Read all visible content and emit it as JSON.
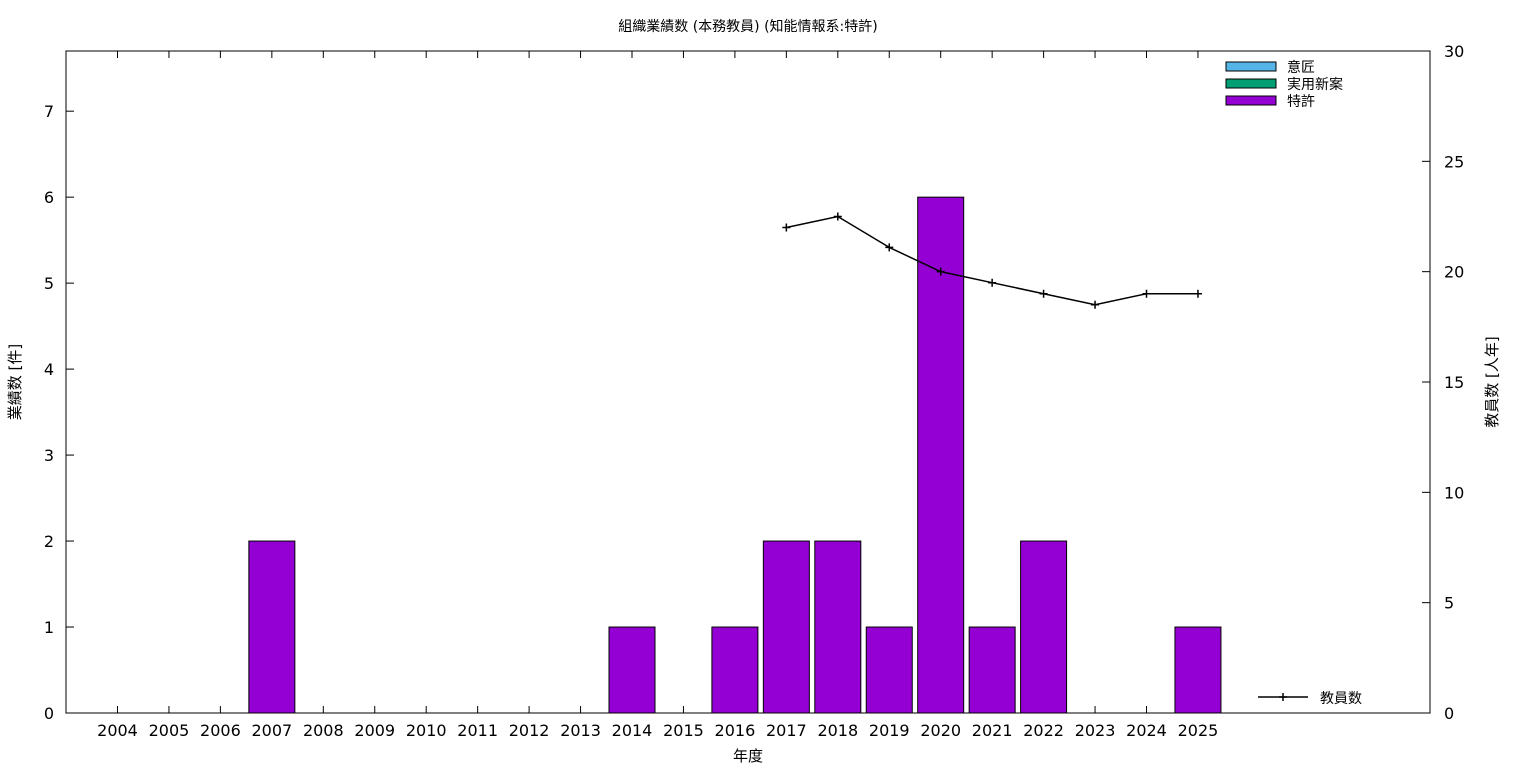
{
  "chart_data": {
    "type": "bar",
    "title": "組織業績数 (本務教員) (知能情報系:特許)",
    "xlabel": "年度",
    "ylabel": "業績数 [件]",
    "y2label": "教員数 [人年]",
    "categories": [
      "2004",
      "2005",
      "2006",
      "2007",
      "2008",
      "2009",
      "2010",
      "2011",
      "2012",
      "2013",
      "2014",
      "2015",
      "2016",
      "2017",
      "2018",
      "2019",
      "2020",
      "2021",
      "2022",
      "2023",
      "2024",
      "2025"
    ],
    "ylim": [
      0,
      7.7
    ],
    "y2lim": [
      0,
      30
    ],
    "yticks": [
      0,
      1,
      2,
      3,
      4,
      5,
      6,
      7
    ],
    "y2ticks": [
      0,
      5,
      10,
      15,
      20,
      25,
      30
    ],
    "grid": false,
    "series": [
      {
        "name": "意匠",
        "color": "#56b4e9",
        "values": [
          0,
          0,
          0,
          0,
          0,
          0,
          0,
          0,
          0,
          0,
          0,
          0,
          0,
          0,
          0,
          0,
          0,
          0,
          0,
          0,
          0,
          0
        ]
      },
      {
        "name": "実用新案",
        "color": "#009e73",
        "values": [
          0,
          0,
          0,
          0,
          0,
          0,
          0,
          0,
          0,
          0,
          0,
          0,
          0,
          0,
          0,
          0,
          0,
          0,
          0,
          0,
          0,
          0
        ]
      },
      {
        "name": "特許",
        "color": "#9400d3",
        "values": [
          0,
          0,
          0,
          2,
          0,
          0,
          0,
          0,
          0,
          0,
          1,
          0,
          1,
          2,
          2,
          1,
          6,
          1,
          2,
          0,
          0,
          1
        ]
      }
    ],
    "line_series": {
      "name": "教員数",
      "axis": "y2",
      "color": "#000000",
      "x": [
        "2017",
        "2018",
        "2019",
        "2020",
        "2021",
        "2022",
        "2023",
        "2024",
        "2025"
      ],
      "values": [
        22.0,
        22.5,
        21.1,
        20.0,
        19.5,
        19.0,
        18.5,
        19.0,
        19.0
      ]
    },
    "legend_position": "top-right",
    "legend_line_position": "bottom-right"
  }
}
